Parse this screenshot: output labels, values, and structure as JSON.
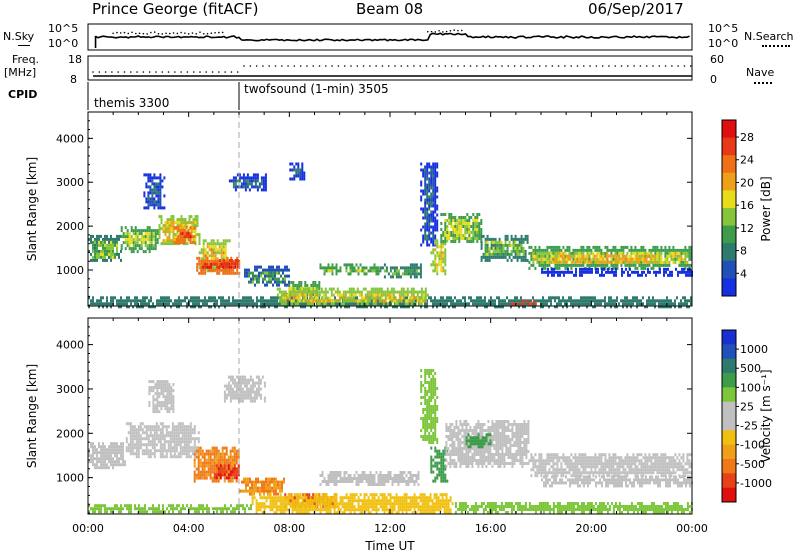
{
  "header": {
    "station": "Prince George (fitACF)",
    "beam": "Beam 08",
    "date": "06/Sep/2017"
  },
  "strip_labels": {
    "nsky": "N.Sky",
    "nsky_ticks": [
      "10^5",
      "10^0"
    ],
    "nsearch": "N.Search",
    "nsearch_ticks": [
      "10^5",
      "10^0"
    ],
    "freq": "Freq.",
    "freq_unit": "[MHz]",
    "freq_ticks": [
      "18",
      "8"
    ],
    "nave": "Nave",
    "nave_ticks": [
      "60",
      "0"
    ],
    "cpid": "CPID"
  },
  "cpid_modes": [
    {
      "label": "themis 3300",
      "start_hour": 0,
      "end_hour": 6
    },
    {
      "label": "twofsound (1-min) 3505",
      "start_hour": 6,
      "end_hour": 24
    }
  ],
  "time_axis": {
    "label": "Time UT",
    "ticks": [
      "00:00",
      "04:00",
      "08:00",
      "12:00",
      "16:00",
      "20:00",
      "00:00"
    ]
  },
  "chart_data": [
    {
      "type": "heatmap",
      "title": "",
      "xlabel": "Time UT",
      "ylabel": "Slant Range [km]",
      "xlim": [
        0,
        24
      ],
      "ylim": [
        180,
        4600
      ],
      "yticks": [
        "1000",
        "2000",
        "3000",
        "4000"
      ],
      "colorbar_label": "Power [dB]",
      "colorbar_ticks": [
        "4",
        "8",
        "12",
        "16",
        "20",
        "24",
        "28"
      ],
      "colorbar_range": [
        0,
        30
      ],
      "colors": [
        "#1630e0",
        "#2050b8",
        "#2e7a6e",
        "#3c9c4a",
        "#86c43a",
        "#e8dc1a",
        "#f0a018",
        "#f07018",
        "#e83818",
        "#e01010"
      ],
      "regions": [
        {
          "t0": 0.0,
          "t1": 1.3,
          "r0": 1200,
          "r1": 1800,
          "v": 12
        },
        {
          "t0": 1.3,
          "t1": 2.8,
          "r0": 1450,
          "r1": 2000,
          "v": 14
        },
        {
          "t0": 2.8,
          "t1": 4.4,
          "r0": 1600,
          "r1": 2250,
          "v": 17
        },
        {
          "t0": 3.4,
          "t1": 4.2,
          "r0": 1650,
          "r1": 2000,
          "v": 26
        },
        {
          "t0": 4.4,
          "t1": 5.6,
          "r0": 1000,
          "r1": 1700,
          "v": 18
        },
        {
          "t0": 4.3,
          "t1": 6.0,
          "r0": 950,
          "r1": 1300,
          "v": 27
        },
        {
          "t0": 5.2,
          "t1": 6.0,
          "r0": 1050,
          "r1": 1250,
          "v": 29
        },
        {
          "t0": 2.2,
          "t1": 3.0,
          "r0": 2400,
          "r1": 3200,
          "v": 5
        },
        {
          "t0": 5.6,
          "t1": 7.1,
          "r0": 2800,
          "r1": 3200,
          "v": 6
        },
        {
          "t0": 8.0,
          "t1": 8.6,
          "r0": 3050,
          "r1": 3450,
          "v": 4
        },
        {
          "t0": 6.2,
          "t1": 8.0,
          "r0": 650,
          "r1": 1100,
          "v": 9
        },
        {
          "t0": 7.8,
          "t1": 9.2,
          "r0": 450,
          "r1": 750,
          "v": 14
        },
        {
          "t0": 9.2,
          "t1": 11.6,
          "r0": 900,
          "r1": 1150,
          "v": 13
        },
        {
          "t0": 11.6,
          "t1": 13.2,
          "r0": 850,
          "r1": 1150,
          "v": 10
        },
        {
          "t0": 13.2,
          "t1": 13.9,
          "r0": 1600,
          "r1": 3450,
          "v": 5
        },
        {
          "t0": 13.6,
          "t1": 14.3,
          "r0": 900,
          "r1": 1700,
          "v": 16
        },
        {
          "t0": 14.0,
          "t1": 15.6,
          "r0": 1650,
          "r1": 2300,
          "v": 14
        },
        {
          "t0": 15.6,
          "t1": 17.5,
          "r0": 1250,
          "r1": 1800,
          "v": 12
        },
        {
          "t0": 17.5,
          "t1": 24.0,
          "r0": 1050,
          "r1": 1550,
          "v": 15
        },
        {
          "t0": 18.5,
          "t1": 22.5,
          "r0": 1150,
          "r1": 1350,
          "v": 23
        },
        {
          "t0": 18.0,
          "t1": 24.0,
          "r0": 850,
          "r1": 1050,
          "v": 5
        },
        {
          "t0": 0.0,
          "t1": 24.0,
          "r0": 180,
          "r1": 400,
          "v": 10
        },
        {
          "t0": 7.5,
          "t1": 13.5,
          "r0": 200,
          "r1": 600,
          "v": 16
        },
        {
          "t0": 16.8,
          "t1": 17.8,
          "r0": 200,
          "r1": 330,
          "v": 30
        }
      ]
    },
    {
      "type": "heatmap",
      "title": "",
      "xlabel": "Time UT",
      "ylabel": "Slant Range [km]",
      "xlim": [
        0,
        24
      ],
      "ylim": [
        180,
        4600
      ],
      "yticks": [
        "1000",
        "2000",
        "3000",
        "4000"
      ],
      "colorbar_label": "Velocity [m s⁻¹]",
      "colorbar_ticks": [
        "1000",
        "500",
        "100",
        "25",
        "-25",
        "-100",
        "-500",
        "-1000"
      ],
      "colors": [
        "#1830d0",
        "#2050b8",
        "#2e7a6e",
        "#3c9c4a",
        "#7cc63a",
        "#c0c0c0",
        "#c0c0c0",
        "#f0c010",
        "#f0a018",
        "#f07818",
        "#e84018",
        "#e01010"
      ],
      "regions": [
        {
          "t0": 0.0,
          "t1": 1.5,
          "r0": 1200,
          "r1": 1800,
          "v": 0
        },
        {
          "t0": 1.5,
          "t1": 4.4,
          "r0": 1450,
          "r1": 2250,
          "v": 0
        },
        {
          "t0": 2.4,
          "t1": 3.4,
          "r0": 2500,
          "r1": 3200,
          "v": 0
        },
        {
          "t0": 5.4,
          "t1": 7.0,
          "r0": 2700,
          "r1": 3300,
          "v": 0
        },
        {
          "t0": 4.2,
          "t1": 6.0,
          "r0": 950,
          "r1": 1700,
          "v": -350
        },
        {
          "t0": 5.0,
          "t1": 6.0,
          "r0": 1000,
          "r1": 1300,
          "v": -800
        },
        {
          "t0": 6.0,
          "t1": 7.8,
          "r0": 600,
          "r1": 1000,
          "v": -300
        },
        {
          "t0": 7.8,
          "t1": 9.8,
          "r0": 350,
          "r1": 650,
          "v": -700
        },
        {
          "t0": 9.2,
          "t1": 13.2,
          "r0": 850,
          "r1": 1150,
          "v": 0
        },
        {
          "t0": 13.2,
          "t1": 13.9,
          "r0": 1800,
          "r1": 3450,
          "v": 60
        },
        {
          "t0": 13.6,
          "t1": 14.3,
          "r0": 900,
          "r1": 1700,
          "v": 200
        },
        {
          "t0": 14.2,
          "t1": 17.5,
          "r0": 1250,
          "r1": 2300,
          "v": 0
        },
        {
          "t0": 15.0,
          "t1": 16.0,
          "r0": 1700,
          "r1": 2000,
          "v": 200
        },
        {
          "t0": 17.5,
          "t1": 24.0,
          "r0": 1050,
          "r1": 1550,
          "v": 0
        },
        {
          "t0": 18.0,
          "t1": 24.0,
          "r0": 800,
          "r1": 1050,
          "v": 0
        },
        {
          "t0": 6.5,
          "t1": 14.5,
          "r0": 200,
          "r1": 650,
          "v": -60
        },
        {
          "t0": 14.5,
          "t1": 24.0,
          "r0": 200,
          "r1": 450,
          "v": 60
        },
        {
          "t0": 0.0,
          "t1": 6.5,
          "r0": 200,
          "r1": 400,
          "v": 60
        }
      ]
    }
  ]
}
